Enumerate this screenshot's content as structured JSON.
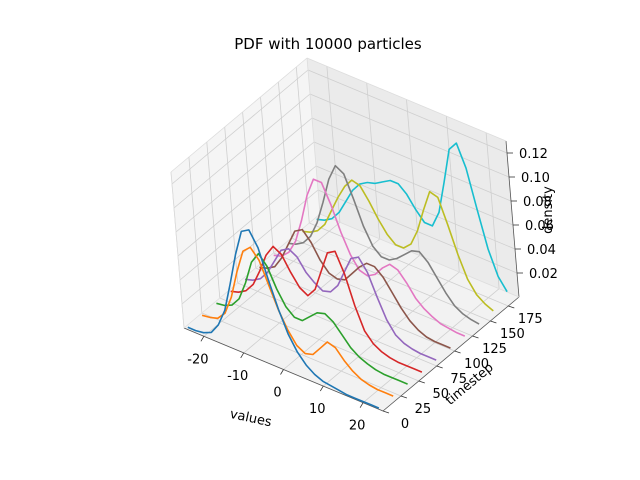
{
  "chart_data": {
    "type": "line",
    "projection": "3d",
    "title": "PDF with 10000 particles",
    "xlabel": "values",
    "ylabel": "timestep",
    "zlabel": "density",
    "xlim": [
      -25,
      25
    ],
    "ylim": [
      0,
      190
    ],
    "zlim": [
      0,
      0.13
    ],
    "x_ticks": [
      -20,
      -10,
      0,
      10,
      20
    ],
    "y_ticks": [
      0,
      25,
      50,
      75,
      100,
      125,
      150,
      175
    ],
    "z_ticks": [
      "0.02",
      "0.04",
      "0.06",
      "0.08",
      "0.10",
      "0.12"
    ],
    "grid": true,
    "x": [
      -24,
      -22,
      -20,
      -18,
      -16,
      -14,
      -12,
      -10,
      -8,
      -6,
      -4,
      -2,
      0,
      2,
      4,
      6,
      8,
      10,
      12,
      14,
      16,
      18,
      20,
      22,
      24
    ],
    "series": [
      {
        "timestep": 0,
        "color": "#1f77b4",
        "values": [
          0.002,
          0.002,
          0.003,
          0.006,
          0.015,
          0.03,
          0.055,
          0.082,
          0.104,
          0.108,
          0.096,
          0.072,
          0.05,
          0.032,
          0.02,
          0.012,
          0.007,
          0.004,
          0.003,
          0.002,
          0.001,
          0.001,
          0.001,
          0.001,
          0.001
        ]
      },
      {
        "timestep": 20,
        "color": "#ff7f0e",
        "values": [
          0.002,
          0.003,
          0.005,
          0.012,
          0.028,
          0.052,
          0.072,
          0.078,
          0.07,
          0.052,
          0.034,
          0.02,
          0.01,
          0.006,
          0.008,
          0.016,
          0.024,
          0.022,
          0.014,
          0.008,
          0.004,
          0.002,
          0.001,
          0.001,
          0.001
        ]
      },
      {
        "timestep": 40,
        "color": "#2ca02c",
        "values": [
          0.002,
          0.003,
          0.006,
          0.014,
          0.03,
          0.05,
          0.06,
          0.052,
          0.036,
          0.024,
          0.018,
          0.018,
          0.024,
          0.03,
          0.032,
          0.028,
          0.02,
          0.012,
          0.007,
          0.004,
          0.002,
          0.001,
          0.001,
          0.001,
          0.001
        ]
      },
      {
        "timestep": 60,
        "color": "#d62728",
        "values": [
          0.002,
          0.004,
          0.008,
          0.016,
          0.03,
          0.046,
          0.056,
          0.052,
          0.04,
          0.03,
          0.026,
          0.034,
          0.052,
          0.07,
          0.074,
          0.058,
          0.034,
          0.016,
          0.008,
          0.004,
          0.002,
          0.001,
          0.001,
          0.001,
          0.001
        ]
      },
      {
        "timestep": 80,
        "color": "#9467bd",
        "values": [
          0.002,
          0.004,
          0.008,
          0.016,
          0.028,
          0.04,
          0.044,
          0.04,
          0.03,
          0.024,
          0.02,
          0.022,
          0.03,
          0.044,
          0.058,
          0.062,
          0.052,
          0.034,
          0.018,
          0.008,
          0.004,
          0.002,
          0.001,
          0.001,
          0.001
        ]
      },
      {
        "timestep": 100,
        "color": "#8c564b",
        "values": [
          0.002,
          0.004,
          0.008,
          0.018,
          0.032,
          0.046,
          0.05,
          0.042,
          0.03,
          0.022,
          0.02,
          0.022,
          0.03,
          0.038,
          0.044,
          0.044,
          0.038,
          0.028,
          0.018,
          0.01,
          0.005,
          0.002,
          0.001,
          0.001,
          0.001
        ]
      },
      {
        "timestep": 120,
        "color": "#e377c2",
        "values": [
          0.002,
          0.004,
          0.01,
          0.022,
          0.042,
          0.066,
          0.082,
          0.082,
          0.066,
          0.046,
          0.03,
          0.02,
          0.018,
          0.022,
          0.03,
          0.036,
          0.034,
          0.026,
          0.016,
          0.01,
          0.006,
          0.003,
          0.002,
          0.001,
          0.001
        ]
      },
      {
        "timestep": 140,
        "color": "#7f7f7f",
        "values": [
          0.002,
          0.004,
          0.008,
          0.016,
          0.03,
          0.05,
          0.072,
          0.086,
          0.082,
          0.064,
          0.044,
          0.03,
          0.024,
          0.024,
          0.028,
          0.034,
          0.04,
          0.042,
          0.036,
          0.026,
          0.016,
          0.008,
          0.004,
          0.002,
          0.001
        ]
      },
      {
        "timestep": 160,
        "color": "#bcbd22",
        "values": [
          0.002,
          0.004,
          0.008,
          0.016,
          0.03,
          0.044,
          0.056,
          0.064,
          0.062,
          0.052,
          0.04,
          0.03,
          0.024,
          0.024,
          0.03,
          0.044,
          0.064,
          0.082,
          0.08,
          0.06,
          0.038,
          0.02,
          0.01,
          0.005,
          0.002
        ]
      },
      {
        "timestep": 180,
        "color": "#17becf",
        "values": [
          0.002,
          0.004,
          0.008,
          0.016,
          0.028,
          0.04,
          0.048,
          0.052,
          0.054,
          0.058,
          0.062,
          0.062,
          0.056,
          0.046,
          0.038,
          0.038,
          0.052,
          0.08,
          0.11,
          0.118,
          0.1,
          0.068,
          0.038,
          0.018,
          0.008
        ]
      }
    ]
  }
}
